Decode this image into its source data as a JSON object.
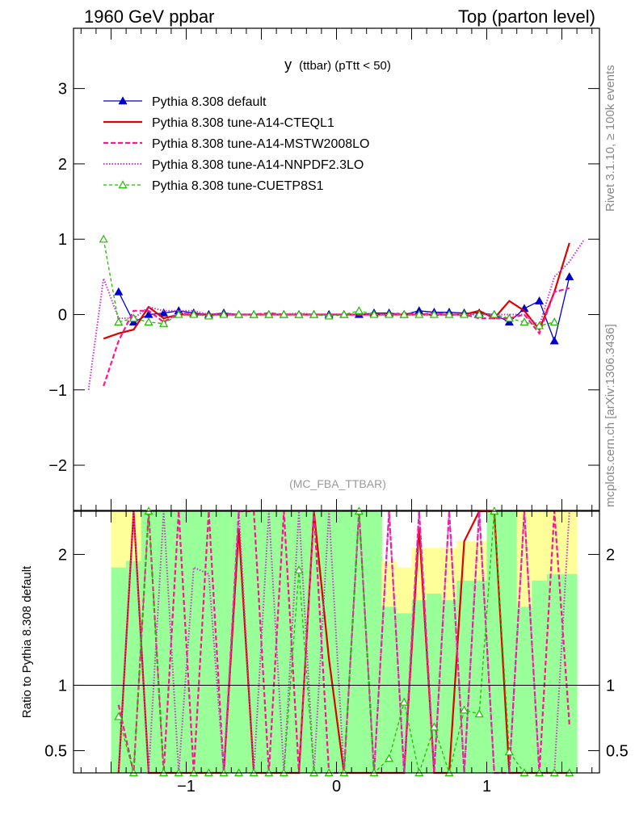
{
  "header": {
    "left": "1960 GeV ppbar",
    "right": "Top (parton level)"
  },
  "side_labels": {
    "rivet": "Rivet 3.1.10, ≥ 100k events",
    "mcplots": "mcplots.cern.ch [arXiv:1306.3436]"
  },
  "watermark": "(MC_FBA_TTBAR)",
  "colors": {
    "default": "#0000cc",
    "cteql1": "#e00000",
    "mstw": "#ff1493",
    "nnpdf": "#cc33cc",
    "cuetp8s1": "#22bb00",
    "band_green": "#99ff99",
    "band_yellow": "#ffff99"
  },
  "chart_data": [
    {
      "type": "line",
      "title": "y (ttbar) (pTtt < 50)",
      "title_main": "y",
      "title_sub": "(ttbar) (pTtt < 50)",
      "xlabel": "",
      "ylabel": "",
      "xlim": [
        -1.75,
        1.75
      ],
      "ylim": [
        -2.6,
        3.8
      ],
      "y_ticks": [
        -2,
        -1,
        0,
        1,
        2,
        3
      ],
      "y_tick_labels": [
        "−2",
        "−1",
        "0",
        "1",
        "2",
        "3"
      ],
      "legend_position": "top-left",
      "x": [
        -1.65,
        -1.55,
        -1.45,
        -1.35,
        -1.25,
        -1.15,
        -1.05,
        -0.95,
        -0.85,
        -0.75,
        -0.65,
        -0.55,
        -0.45,
        -0.35,
        -0.25,
        -0.15,
        -0.05,
        0.05,
        0.15,
        0.25,
        0.35,
        0.45,
        0.55,
        0.65,
        0.75,
        0.85,
        0.95,
        1.05,
        1.15,
        1.25,
        1.35,
        1.45,
        1.55,
        1.65
      ],
      "series": [
        {
          "name": "Pythia 8.308 default",
          "key": "default",
          "values": [
            null,
            null,
            0.3,
            -0.1,
            0.0,
            0.02,
            0.05,
            0.02,
            0.0,
            0.02,
            0.0,
            0.0,
            0.0,
            0.0,
            0.0,
            0.0,
            0.0,
            0.0,
            0.0,
            0.02,
            0.02,
            0.0,
            0.05,
            0.03,
            0.03,
            0.02,
            0.02,
            0.0,
            -0.1,
            0.08,
            0.18,
            -0.35,
            0.5,
            null
          ]
        },
        {
          "name": "Pythia 8.308 tune-A14-CTEQL1",
          "key": "cteql1",
          "values": [
            null,
            -0.32,
            -0.25,
            -0.2,
            0.1,
            -0.05,
            0.0,
            0.0,
            0.0,
            0.0,
            0.0,
            0.0,
            0.0,
            0.0,
            0.0,
            0.0,
            0.0,
            0.0,
            0.0,
            0.0,
            0.0,
            0.0,
            0.0,
            0.0,
            0.0,
            0.0,
            0.05,
            -0.05,
            0.18,
            0.05,
            -0.2,
            0.3,
            0.95,
            null
          ]
        },
        {
          "name": "Pythia 8.308 tune-A14-MSTW2008LO",
          "key": "mstw",
          "values": [
            null,
            -0.95,
            -0.35,
            0.05,
            0.05,
            -0.1,
            0.02,
            0.0,
            0.0,
            0.0,
            0.0,
            0.0,
            0.02,
            0.0,
            0.0,
            0.0,
            0.0,
            0.0,
            0.0,
            0.0,
            0.0,
            0.02,
            0.0,
            0.02,
            0.0,
            0.0,
            -0.05,
            -0.05,
            -0.05,
            0.0,
            -0.25,
            0.3,
            0.35,
            null
          ]
        },
        {
          "name": "Pythia 8.308 tune-A14-NNPDF2.3LO",
          "key": "nnpdf",
          "values": [
            -1.0,
            0.48,
            -0.05,
            -0.05,
            0.1,
            0.05,
            0.05,
            0.05,
            0.0,
            0.02,
            0.0,
            0.0,
            0.0,
            0.0,
            0.02,
            0.0,
            0.0,
            0.0,
            0.0,
            0.0,
            0.0,
            0.0,
            0.0,
            0.0,
            0.0,
            0.0,
            0.0,
            0.0,
            0.0,
            0.0,
            -0.15,
            0.5,
            0.7,
            1.0
          ]
        },
        {
          "name": "Pythia 8.308 tune-CUETP8S1",
          "key": "cuetp8s1",
          "values": [
            null,
            1.0,
            -0.1,
            -0.05,
            -0.1,
            -0.12,
            0.0,
            0.0,
            -0.02,
            0.0,
            0.0,
            0.0,
            0.0,
            0.0,
            0.0,
            0.0,
            -0.02,
            0.0,
            0.05,
            0.0,
            0.0,
            0.0,
            0.0,
            0.0,
            0.0,
            0.0,
            0.0,
            0.0,
            -0.05,
            -0.1,
            -0.15,
            -0.1,
            null,
            null
          ]
        }
      ]
    },
    {
      "type": "line",
      "title": "",
      "xlabel": "",
      "ylabel": "Ratio to Pythia 8.308 default",
      "xlim": [
        -1.75,
        1.75
      ],
      "ylim": [
        0.33,
        2.33
      ],
      "x_ticks": [
        -1,
        0,
        1
      ],
      "x_tick_labels": [
        "−1",
        "0",
        "1"
      ],
      "y_ticks": [
        0.5,
        1,
        2
      ],
      "y_tick_labels": [
        "0.5",
        "1",
        "2"
      ],
      "reference_line": 1,
      "x": [
        -1.45,
        -1.35,
        -1.25,
        -1.15,
        -1.05,
        -0.95,
        -0.85,
        -0.75,
        -0.65,
        -0.55,
        -0.45,
        -0.35,
        -0.25,
        -0.15,
        -0.05,
        0.05,
        0.15,
        0.25,
        0.35,
        0.45,
        0.55,
        0.65,
        0.75,
        0.85,
        0.95,
        1.05,
        1.15,
        1.25,
        1.35,
        1.45,
        1.55
      ],
      "bands": {
        "green_upper": [
          1.9,
          1.95,
          2.33,
          2.33,
          2.33,
          2.33,
          2.33,
          2.33,
          2.33,
          2.33,
          2.33,
          2.33,
          2.33,
          2.33,
          2.33,
          2.33,
          2.33,
          2.33,
          1.6,
          1.55,
          1.65,
          1.7,
          1.65,
          1.8,
          1.8,
          2.33,
          2.33,
          1.6,
          1.8,
          1.85,
          1.85
        ],
        "yellow_upper": [
          2.33,
          2.33,
          2.33,
          2.33,
          2.33,
          2.33,
          2.33,
          2.33,
          2.33,
          2.33,
          2.33,
          2.33,
          2.33,
          2.33,
          2.33,
          2.33,
          2.33,
          2.33,
          1.95,
          1.9,
          2.05,
          2.05,
          2.05,
          2.1,
          2.1,
          2.33,
          2.33,
          2.33,
          2.33,
          2.33,
          2.33
        ]
      },
      "series": [
        {
          "name": "Pythia 8.308 tune-A14-CTEQL1",
          "key": "cteql1",
          "values": [
            0.33,
            2.33,
            0.33,
            0.33,
            0.33,
            0.33,
            0.33,
            0.33,
            2.2,
            0.33,
            0.33,
            0.33,
            0.33,
            2.33,
            1.2,
            0.33,
            0.33,
            0.33,
            0.33,
            0.33,
            2.2,
            0.33,
            0.33,
            2.1,
            2.33,
            2.33,
            0.33,
            0.33,
            0.33,
            0.33,
            0.33
          ]
        },
        {
          "name": "Pythia 8.308 tune-A14-MSTW2008LO",
          "key": "mstw",
          "values": [
            0.85,
            0.33,
            2.33,
            0.33,
            2.33,
            0.33,
            2.33,
            0.33,
            2.33,
            2.33,
            0.33,
            2.33,
            0.33,
            2.33,
            0.33,
            0.33,
            2.33,
            0.33,
            2.33,
            0.33,
            2.33,
            0.33,
            2.33,
            0.33,
            2.33,
            0.33,
            0.33,
            2.33,
            0.33,
            2.33,
            0.7
          ]
        },
        {
          "name": "Pythia 8.308 tune-A14-NNPDF2.3LO",
          "key": "nnpdf",
          "values": [
            0.33,
            2.33,
            0.33,
            2.33,
            0.33,
            1.9,
            1.85,
            0.33,
            2.33,
            0.33,
            2.33,
            0.33,
            2.33,
            0.33,
            2.33,
            0.33,
            2.33,
            0.33,
            2.33,
            0.33,
            2.33,
            0.33,
            2.33,
            0.33,
            2.33,
            0.33,
            0.33,
            2.33,
            0.33,
            0.33,
            2.33
          ]
        },
        {
          "name": "Pythia 8.308 tune-CUETP8S1",
          "key": "cuetp8s1",
          "values": [
            0.76,
            0.33,
            2.33,
            0.33,
            0.33,
            0.33,
            0.33,
            0.33,
            0.33,
            0.33,
            0.33,
            0.33,
            1.88,
            0.33,
            0.33,
            0.33,
            2.33,
            0.33,
            0.44,
            0.87,
            0.33,
            0.68,
            0.33,
            0.81,
            0.78,
            2.33,
            0.49,
            0.33,
            0.33,
            0.33,
            0.33
          ]
        }
      ]
    }
  ]
}
